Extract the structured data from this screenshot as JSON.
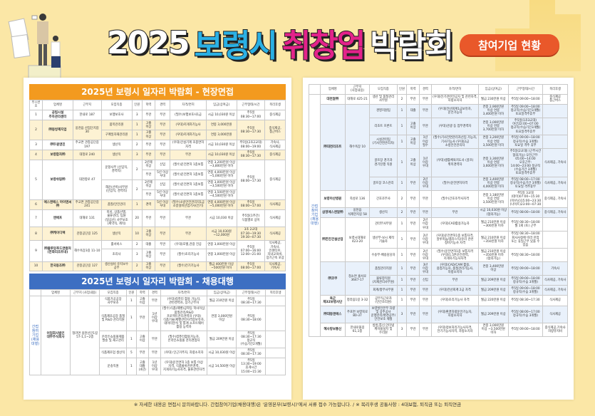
{
  "header": {
    "title_parts": [
      "2025",
      "보령시",
      "취창업",
      "박람회"
    ],
    "badge": "참여기업 현황"
  },
  "colors": {
    "background": "#fbe7a6",
    "onsite_header": "#f39a1f",
    "agency_header": "#3d6fc2",
    "badge": "#e9582a",
    "title_blue": "#2ab0e4",
    "title_pink": "#e3228a"
  },
  "onsite": {
    "title": "2025년 보령시 일자리 박람회 - 현장면접",
    "columns": [
      "부스번호",
      "업체명",
      "근무지",
      "모집직종",
      "인원",
      "학력",
      "경력",
      "자격/면허",
      "임금(상여금)",
      "근무형태/시간",
      "복리후생"
    ],
    "rows": [
      [
        "1",
        "공립시설 주차관리센터",
        "한내로 187",
        "보행보호사",
        "3",
        "무관",
        "무관",
        "(필수)보행보호사1급",
        "시급 10,030원 이상",
        "주5일 08:30~17:00",
        "중식제공"
      ],
      [
        "2",
        "㈜동방제지업",
        "웅천읍 산업단지길 30",
        "품목관리원",
        "1",
        "고졸 이상",
        "무관",
        "(우대)지게차기능사",
        "연봉 3,000만원",
        "주5일 08:30~17:30",
        "중식제공, 통근버스"
      ],
      [
        null,
        null,
        null,
        "구매일자재관리원",
        "1",
        "고졸 이상",
        "무관",
        "(우대)지게차기능사",
        "연봉 3,000만원",
        null,
        null
      ],
      [
        "3",
        "㈜두원엔진",
        "주교면 관창공단길 197",
        "생산직",
        "2",
        "무관",
        "무관",
        "(우대)건설기계 조종면허 자격",
        "시급 10,030원 이상",
        "주5일(2조2교대) 08:00~19:00",
        "기숙사, 식사제공"
      ],
      [
        "4",
        "보령합자㈜",
        "대청로 240",
        "생산직",
        "3",
        "무관",
        "무관",
        "무관",
        "시급 10,030원 이상",
        "주5일 08:30~17:30",
        "중식제공"
      ],
      [
        "5",
        "보령쉬핑㈜",
        "대천항로 47",
        "운항사무 (신입직, 경력직)",
        "2",
        "2년제 이상",
        "신입",
        "(필수)운전면허 1종보통",
        "연봉 3,200만원 이상 ~3,800만원 이하",
        "주5일 08:00~17:30",
        "중식제공"
      ],
      [
        null,
        null,
        null,
        null,
        null,
        "무관",
        "5년 이상 우대",
        "(필수)운전면허 1종보통",
        "연봉 4,000만원 이상 ~5,000만원 이하",
        null,
        null
      ],
      [
        null,
        null,
        null,
        "해운(선박)사무원 (신입직, 경력직)",
        "2",
        "2년제 이상",
        "신입",
        "(필수)운전면허 1종보통",
        "연봉 3,000만원 이상 ~3,500만원 이하",
        null,
        null
      ],
      [
        null,
        null,
        null,
        null,
        null,
        "무관",
        "5년 이상 우대",
        "(필수)운전면허 1종보통",
        "연봉 3,500만원 이상 ~4,500만원 이하",
        null,
        null
      ],
      [
        "6",
        "에스엔에스 아이엔씨㈜",
        "주교면 관창공단길 241",
        "품질/안전관리",
        "1",
        "경력",
        "5년 이상 우대",
        "(필수)소방안전관리자1급 소방설비산업기사(전기)",
        "연봉 4,000만원 이상 ~5,000만원 이하",
        "주5일 08:00~17:00",
        "식사제공"
      ],
      [
        "7",
        "엔에프",
        "대해로 131",
        "미싱, 상품선별, 물류관리, 팀원(일공산) 사무보조(계약직, 계직)",
        "20",
        "무관",
        "무관",
        "무관",
        "시급 10,030 이상",
        "주5일(1주간) 식품별로 상이",
        "식사제공"
      ],
      [
        "8",
        "㈜케이디텍",
        "관창공단길 125",
        "생산직",
        "10",
        "고졸 이상",
        "무관",
        "무관",
        "시급 10,030원 ~12,000원",
        "3조 2교대 07:30~19:30 19:30~07:30",
        "식사제공"
      ],
      [
        "9",
        "㈜블루밍푸드앤컬처 (한화리조트내)",
        "해수욕장3길 11-10",
        "홀서비스",
        "2",
        "대졸",
        "무관",
        "(우대)호텔,관광 전공",
        "연봉 3,000만원 이상",
        "주5일 07:00~16:00 12:00~21:00",
        "식사제공, 기숙사, 인센티브, 자녀교육비, 장기근속 포상"
      ],
      [
        null,
        null,
        null,
        "조리사",
        "3",
        "고졸 이상",
        "무관",
        "(필수)조리기능사",
        "연봉 3,000만원 이상",
        null,
        null
      ],
      [
        "10",
        "한국동조㈜",
        "관창공단길 127",
        "생산설비 유지보수 공무",
        "2",
        "고졸 이상",
        "무관",
        "(필수)전기기능사",
        "월급 400만원 이상 ~500만원 이하",
        "주5일 08:00~17:00",
        "식사제공, 기숙사"
      ]
    ]
  },
  "agency": {
    "title": "2025년 보령시 일자리 박람회 - 채용대행",
    "side_label": "간접 참여 기업 (채용 대행)",
    "columns": [
      "업체명",
      "근무지 (사업내용)",
      "모집직종",
      "인원",
      "학력",
      "경력",
      "자격/면허",
      "임금(상여금)",
      "근무형태/시간",
      "복리후생"
    ],
    "rows": [
      [
        "어업회사법인 대부주식회사",
        "청라면 용천산단1길 57-1,1~2층",
        "식품가공공장 사무보조",
        "1",
        "고졸 이상",
        "무관",
        "(우대)컴퓨터 활용 가능자, 관련경력자, 장기근무자",
        "월급 210만원 이상",
        "주5일 08:30~17:30",
        ""
      ],
      [
        null,
        null,
        "식품제조공장 품질 및 R&D 관리직원",
        "1",
        "무관",
        "1년 이상 우대",
        "(필수)식품(제빵)공학등 학사이상, 품질관리/R&D 프로젝트관리경력자 (우대)식품기술/제빵관련자격증보유자, 데이터분석 및 통계 소프트웨어 활용 능력자",
        "연봉 3,000만원 이상",
        "주5일 08:30~18:00",
        ""
      ],
      [
        null,
        null,
        "온라인쇼핑몰제품 발송 및 재고관리",
        "1",
        "고졸 이상",
        "무관",
        "(필수)컴퓨터활용가능자, 온라인쇼핑몰 관리경험자",
        "월급 209만원 이상",
        "주5일 08:30~17:30 정규직(수습기간2개월)",
        ""
      ],
      [
        null,
        null,
        "식품제조업 생산직",
        "5",
        "무관",
        "무관",
        "(우대) 인근거주자, 차량소지자",
        "시급 10,030원 이상",
        "주5일 08:30~17:30",
        ""
      ],
      [
        null,
        null,
        "운송직원",
        "1",
        "고졸 대졸 (4년)",
        "1년 이상 우대",
        "(우대)운전면허 1종 보통 이상 자격, 식품물류관련경력, 지게차기능사자격, 물류관련자격",
        "시급 14,500원 이상",
        "주5일 13:30~19:00 휴게시간 15:00~15:30",
        ""
      ]
    ]
  },
  "agency2": {
    "side_label": "간접 참여 기업 (채용 대행)",
    "columns": [
      "업체명",
      "근무지 (사업내용)",
      "모집직종",
      "인원",
      "학력",
      "경력",
      "자격/면허",
      "임금(상여금)",
      "근무형태/시간",
      "복리후생"
    ],
    "rows": [
      [
        "대천알㈜",
        "대해로 425-21",
        "생산 및 품질관리 사무원",
        "2",
        "무관",
        "무관",
        "(우대)전기관련전공자 및 관련자격, 차량소지자",
        "월급 230만원 이상",
        "주5일 09:00~18:00",
        "중식제공 통근버스"
      ],
      [
        "㈜대천리조트",
        "해수욕장 10",
        "경영지원팀",
        "1",
        "대졸",
        "무관",
        "(우대)전산회계1급보유자, 운전가능자",
        "연봉 2,900만원 이상 연봉 3,400만원 이하",
        "주5일 09:00~18:00 정규직(수습기간3개월) 토요일격주휴무",
        ""
      ],
      [
        null,
        null,
        "리조트 프론트",
        "1",
        "고졸 이상",
        "무관",
        "(우대)관광 등 업무경력자",
        "연봉 3,000만원 이상 연봉 3,700만원 이하",
        "주5일(1조3교대) 야간22:00~07:00 정규직(수습기간3개월) 토요일격주휴무",
        ""
      ],
      [
        null,
        null,
        "시설관리팀 (기사전면관리자)",
        "1",
        "고졸 이상",
        "1년 이상 필수",
        "(필수)기사전면관리자선임 가능자, 기사기능사 (우대)2급 소방안전관리자",
        "연봉 3,200만원 이상 연봉 3,500만원 이하",
        "주5일 09:00~18:00 정규직(수습 3개월) 토요일 격주 휴무",
        ""
      ],
      [
        null,
        null,
        "골프장 경기과 경기진행 직원",
        "1",
        "고졸 이상",
        "1년 이상 우대",
        "(우대)생활체육지도사 (골프)취미경력자",
        "연봉 3,300만원 이상 연봉 3,600만원 이하",
        "주5일(2교대) (근무시간 협의가능) 오전근무: 05:00~14:00 오후근무: 14:00~23:00 정규직(수습기간 3개월) 토요일격주휴무",
        "식사제공, 기숙사"
      ],
      [
        null,
        null,
        "골프장 코스관리",
        "1",
        "무관",
        "2년 이상 우대",
        "(필수)운전면허자격",
        "연봉 3,400만원 이상 연봉 4,000만원 이하",
        "주5일 08:00~17:00 정규직(수습기간 3개월) 토요일 격주휴무",
        "식사제공, 기숙사"
      ],
      [
        "보령아산병원",
        "죽성로 136",
        "간호조무사",
        "2",
        "무관",
        "무관",
        "(필수)간호조무사자격",
        "연봉 3,180만원 이상 연봉 3,500만원 이하",
        "주5일 3교대 (데이)07:00~15:30 (이브닝)15:00~23:30 (나이트)23:00~07:30",
        "중식제공, 기숙사"
      ],
      [
        "삼영에스앤알㈜",
        "웅천읍 석제한지길 58",
        "생산직",
        "2",
        "무관",
        "무관",
        "무관",
        "시급 10,030원 이상 (협의가능)",
        "주5일 08:00~18:00",
        "중식제공, 기숙사"
      ],
      [
        "㈜한진건설산업",
        "보령시대해로 423-20",
        "관리부사무원",
        "1",
        "무관",
        "2년 이상 우대",
        "(우대)CAD활용가능자",
        "월급 210만원 이상 ~300만원 이하",
        "주5일 08:30~18:00 월 1회 (토) 근무",
        ""
      ],
      [
        null,
        null,
        "생산부-보시 제작 기술자",
        "1",
        "무관",
        "2년 이상 우대",
        "(우대)운전면허1종 보통자격, 알루미늄/플라스틱/유리 관련 정비기능사 자격",
        "월급 210만원 이상 ~350만원 이하",
        "주5일 08:30~18:00 회사사정에 따라 잔업 또는 휴일근무 있을 수 있음",
        ""
      ],
      [
        null,
        null,
        "수송부-배송담당자",
        "1",
        "무관",
        "2년 이상 우대",
        "(필수)운전면허1종 보통자격 (우대)1.5톤운전경력,지게차기능사자격",
        "월급 210만원 이상 ~350만원 이하 (협의가능)",
        "주5일 08:30~18:00",
        ""
      ],
      [
        "㈜코쿠",
        "청소면 홍서로 3647-17",
        "품질관리직원",
        "1",
        "무관",
        "3년 이상 우대",
        "(우대)CAD/CAM 활용, 용접기능자, 품질관리기능사, 차량소지자",
        "연봉 3,400만원 이상",
        "주5일 09:00~18:00",
        "기숙사"
      ],
      [
        null,
        null,
        "물류창직원 (자재관리사무원)",
        "1",
        "무관",
        "신입",
        "무관",
        "월급 209만원 이상",
        "주5일 09:00~18:00 정규직(수습 3개월)",
        "식사제공, 기숙사"
      ],
      [
        null,
        null,
        "회계/총무사무원",
        "1",
        "무관",
        "무관",
        "(우대)전산회계 2급 자격",
        "월급 209만원 이상",
        "주5일 09:00~18:00 정규직(수습 3개월)",
        "식사제공, 기숙사"
      ],
      [
        "육군 제32보병사단",
        "청라읍1길 3-32",
        "공무직근로자 (민간조리원)",
        "1",
        "무관",
        "무관",
        "(우대)조리기능사 자격",
        "월급 220만원 이상",
        "주5일 08:30~17:30",
        "식사제공"
      ],
      [
        "㈜대동엔에스",
        "주포면 보령북로 80-37",
        "보령발전본부 차량 및 상주공사 운행관리/환경공무/ 안전보조 제철",
        "3",
        "무관",
        "무관",
        "(우대)환경차량운전기능자, 차량소지자",
        "월급 209만원 이상",
        "주5일 08:00~17:00 정규직(수습 3개월)",
        "식사제공"
      ],
      [
        "혜사랑보통신",
        "한내로올길 61,1층",
        "방범,통신,인터넷 케이블설치 및 수리원",
        "3",
        "무관",
        "무관",
        "(우대)정보처리기능사자격, 전기기능사자격, 차량소지자",
        "연봉 3,000만원 이상 ~3,500만원 이하",
        "주5일 09:00~18:00",
        "중식제공,기숙사 차량유지비"
      ]
    ]
  },
  "footer": "※ 자세한 내용은 면접시 문의바랍니다. 간접참여기업(채용대행)은 '운영본부(보령시)'에서 서류 접수 가능합니다. / ※ 복리후생 공통사항 : 4대보험, 퇴직금 또는 퇴직연금"
}
